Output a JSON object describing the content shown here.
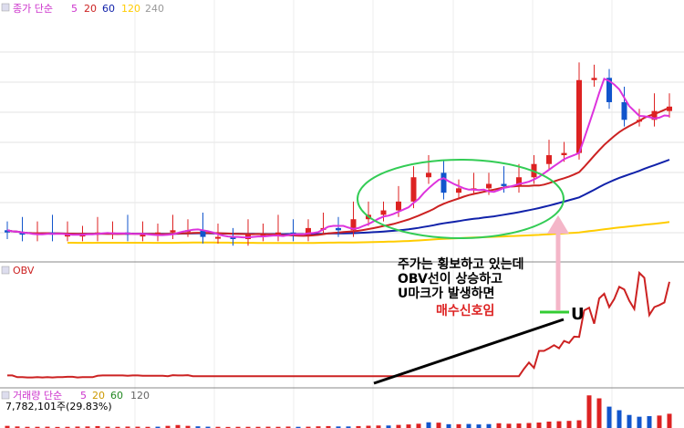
{
  "price_panel": {
    "legend": {
      "title": "종가 단순",
      "periods": [
        {
          "label": "5",
          "color": "#cc33cc"
        },
        {
          "label": "20",
          "color": "#cc2222"
        },
        {
          "label": "60",
          "color": "#1122aa"
        },
        {
          "label": "120",
          "color": "#ffcc00"
        },
        {
          "label": "240",
          "color": "#999999"
        }
      ]
    }
  },
  "obv_panel": {
    "label": "OBV",
    "label_color": "#cc2222"
  },
  "volume_panel": {
    "legend": {
      "title": "거래량 단순",
      "periods": [
        {
          "label": "5",
          "color": "#cc33cc"
        },
        {
          "label": "20",
          "color": "#cc9900"
        },
        {
          "label": "60",
          "color": "#228822"
        },
        {
          "label": "120",
          "color": "#666666"
        }
      ]
    },
    "value_text": "7,782,101주(29.83%)"
  },
  "annotation": {
    "lines": [
      "주가는 횡보하고 있는데",
      "OBV선이 상승하고",
      "U마크가 발생하면"
    ],
    "signal": "매수신호임",
    "marker": "U",
    "signal_color": "#dd2222"
  },
  "colors": {
    "up": "#dd2222",
    "down": "#1155cc",
    "circle": "#33cc55",
    "arrow": "#f4b6c8",
    "u_line": "#33cc33"
  },
  "chart_data": {
    "type": "candlestick",
    "opens": [
      4,
      4,
      3,
      3,
      2,
      2,
      2,
      2,
      3,
      3,
      2,
      2,
      2,
      2,
      2,
      2,
      2,
      3,
      2,
      3,
      3,
      3,
      2,
      2,
      3,
      3,
      2,
      2,
      2,
      2,
      2,
      1,
      2,
      3,
      3,
      5,
      4,
      4,
      5,
      4,
      3,
      2,
      1,
      1,
      1,
      1,
      1,
      1,
      0,
      1,
      2,
      2,
      1,
      1,
      2,
      2,
      1,
      3,
      3,
      2,
      2,
      3,
      4,
      5,
      8,
      8,
      5,
      4,
      5,
      4,
      5,
      7,
      9,
      9,
      10,
      11,
      12,
      11,
      13,
      15,
      16,
      17,
      21,
      22,
      28,
      27,
      27,
      30,
      26,
      21,
      21,
      22,
      25,
      23,
      21,
      20,
      23,
      21,
      22,
      25,
      25,
      25,
      24,
      26,
      27,
      28,
      30,
      30,
      34,
      35,
      36,
      38,
      38,
      39,
      39,
      41,
      70,
      72,
      73,
      75,
      73,
      65,
      64,
      62,
      56,
      54,
      54,
      53,
      61,
      54,
      51,
      56,
      58
    ],
    "closes": [
      4,
      3,
      3,
      2,
      2,
      2,
      2,
      3,
      3,
      2,
      2,
      2,
      2,
      2,
      2,
      2,
      3,
      2,
      3,
      3,
      3,
      2,
      2,
      3,
      3,
      2,
      2,
      2,
      2,
      2,
      1,
      2,
      3,
      3,
      5,
      4,
      4,
      5,
      4,
      3,
      2,
      1,
      1,
      1,
      1,
      1,
      1,
      0,
      1,
      2,
      2,
      1,
      1,
      2,
      2,
      1,
      3,
      3,
      2,
      2,
      3,
      4,
      5,
      8,
      8,
      5,
      4,
      5,
      4,
      5,
      7,
      9,
      9,
      10,
      11,
      12,
      11,
      13,
      15,
      16,
      17,
      21,
      22,
      28,
      27,
      27,
      30,
      26,
      21,
      21,
      22,
      25,
      23,
      21,
      20,
      23,
      21,
      22,
      25,
      25,
      25,
      24,
      26,
      27,
      28,
      30,
      30,
      34,
      35,
      36,
      38,
      38,
      39,
      39,
      41,
      70,
      72,
      73,
      75,
      73,
      65,
      64,
      62,
      56,
      54,
      54,
      53,
      61,
      54,
      51,
      56,
      58,
      60
    ],
    "obv": [
      3.6,
      3.6,
      2.6,
      2.6,
      2.4,
      2.4,
      2.6,
      2.4,
      2.6,
      2.4,
      2.6,
      2.6,
      2.8,
      2.8,
      2.4,
      2.6,
      2.6,
      2.6,
      3.4,
      3.6,
      3.6,
      3.6,
      3.6,
      3.6,
      3.4,
      3.6,
      3.6,
      3.4,
      3.4,
      3.4,
      3.4,
      3.4,
      3.2,
      3.8,
      3.6,
      3.6,
      3.8,
      3.2,
      3.2,
      3.2,
      3.2,
      3.2,
      3.2,
      3.2,
      3.2,
      3.2,
      3.2,
      3.2,
      3.2,
      3.2,
      3.2,
      3.2,
      3.2,
      3.2,
      3.2,
      3.2,
      3.2,
      3.2,
      3.2,
      3.2,
      3.2,
      3.2,
      3.2,
      3.2,
      3.2,
      3.2,
      3.2,
      3.2,
      3.2,
      3.2,
      3.2,
      3.2,
      3.2,
      3.2,
      3.2,
      3.2,
      3.2,
      3.2,
      3.2,
      3.2,
      3.2,
      3.2,
      3.2,
      3.2,
      3.2,
      3.2,
      3.2,
      3.2,
      3.2,
      3.2,
      3.2,
      3.2,
      3.2,
      3.2,
      3.2,
      3.2,
      3.2,
      3.2,
      3.2,
      3.2,
      3.2,
      3.2,
      3.2,
      7.6,
      11.4,
      8.2,
      18.4,
      18.4,
      20.0,
      21.8,
      20.0,
      24.4,
      23.2,
      27.0,
      26.8,
      42.8,
      44.4,
      34.8,
      50.0,
      52.8,
      44.8,
      49.6,
      57.0,
      55.4,
      48.6,
      43.6,
      65.4,
      62.4,
      40.0,
      44.8,
      46.0,
      47.6,
      60.0
    ],
    "volume": [
      1.8,
      1.4,
      1.3,
      1.1,
      1.0,
      1.1,
      1.0,
      1.2,
      1.1,
      1.0,
      0.9,
      1.1,
      1.0,
      1.1,
      1.2,
      1.0,
      1.3,
      1.5,
      1.6,
      1.3,
      1.1,
      0.9,
      1.0,
      1.3,
      1.2,
      1.0,
      1.1,
      0.9,
      1.0,
      1.0,
      1.1,
      1.6,
      1.8,
      2.0,
      2.5,
      2.2,
      1.8,
      1.5,
      1.4,
      1.2,
      1.1,
      1.1,
      1.0,
      0.9,
      0.9,
      1.0,
      1.0,
      1.1,
      1.0,
      0.9,
      1.0,
      1.0,
      1.1,
      1.1,
      1.0,
      1.0,
      1.2,
      1.1,
      1.0,
      1.0,
      1.1,
      1.2,
      1.4,
      1.6,
      1.6,
      1.4,
      1.3,
      1.2,
      1.3,
      1.2,
      1.6,
      1.8,
      1.9,
      2.0,
      2.1,
      2.2,
      2.1,
      2.4,
      2.6,
      2.8,
      3.0,
      3.5,
      3.6,
      5.5,
      4.8,
      4.0,
      4.5,
      3.5,
      3.2,
      3.0,
      3.2,
      3.6,
      3.4,
      3.2,
      3.0,
      3.5,
      3.3,
      3.5,
      4.0,
      3.8,
      3.6,
      3.4,
      3.8,
      4.0,
      4.2,
      4.5,
      4.6,
      5.0,
      5.4,
      5.5,
      5.7,
      5.8,
      6.0,
      6.2,
      6.5,
      26.0,
      27.5,
      20.0,
      25.0,
      22.0,
      18.0,
      16.0,
      15.0,
      12.0,
      11.0,
      10.0,
      9.5,
      13.0,
      10.0,
      9.0,
      10.5,
      11.0,
      12.0
    ],
    "grid": true
  }
}
